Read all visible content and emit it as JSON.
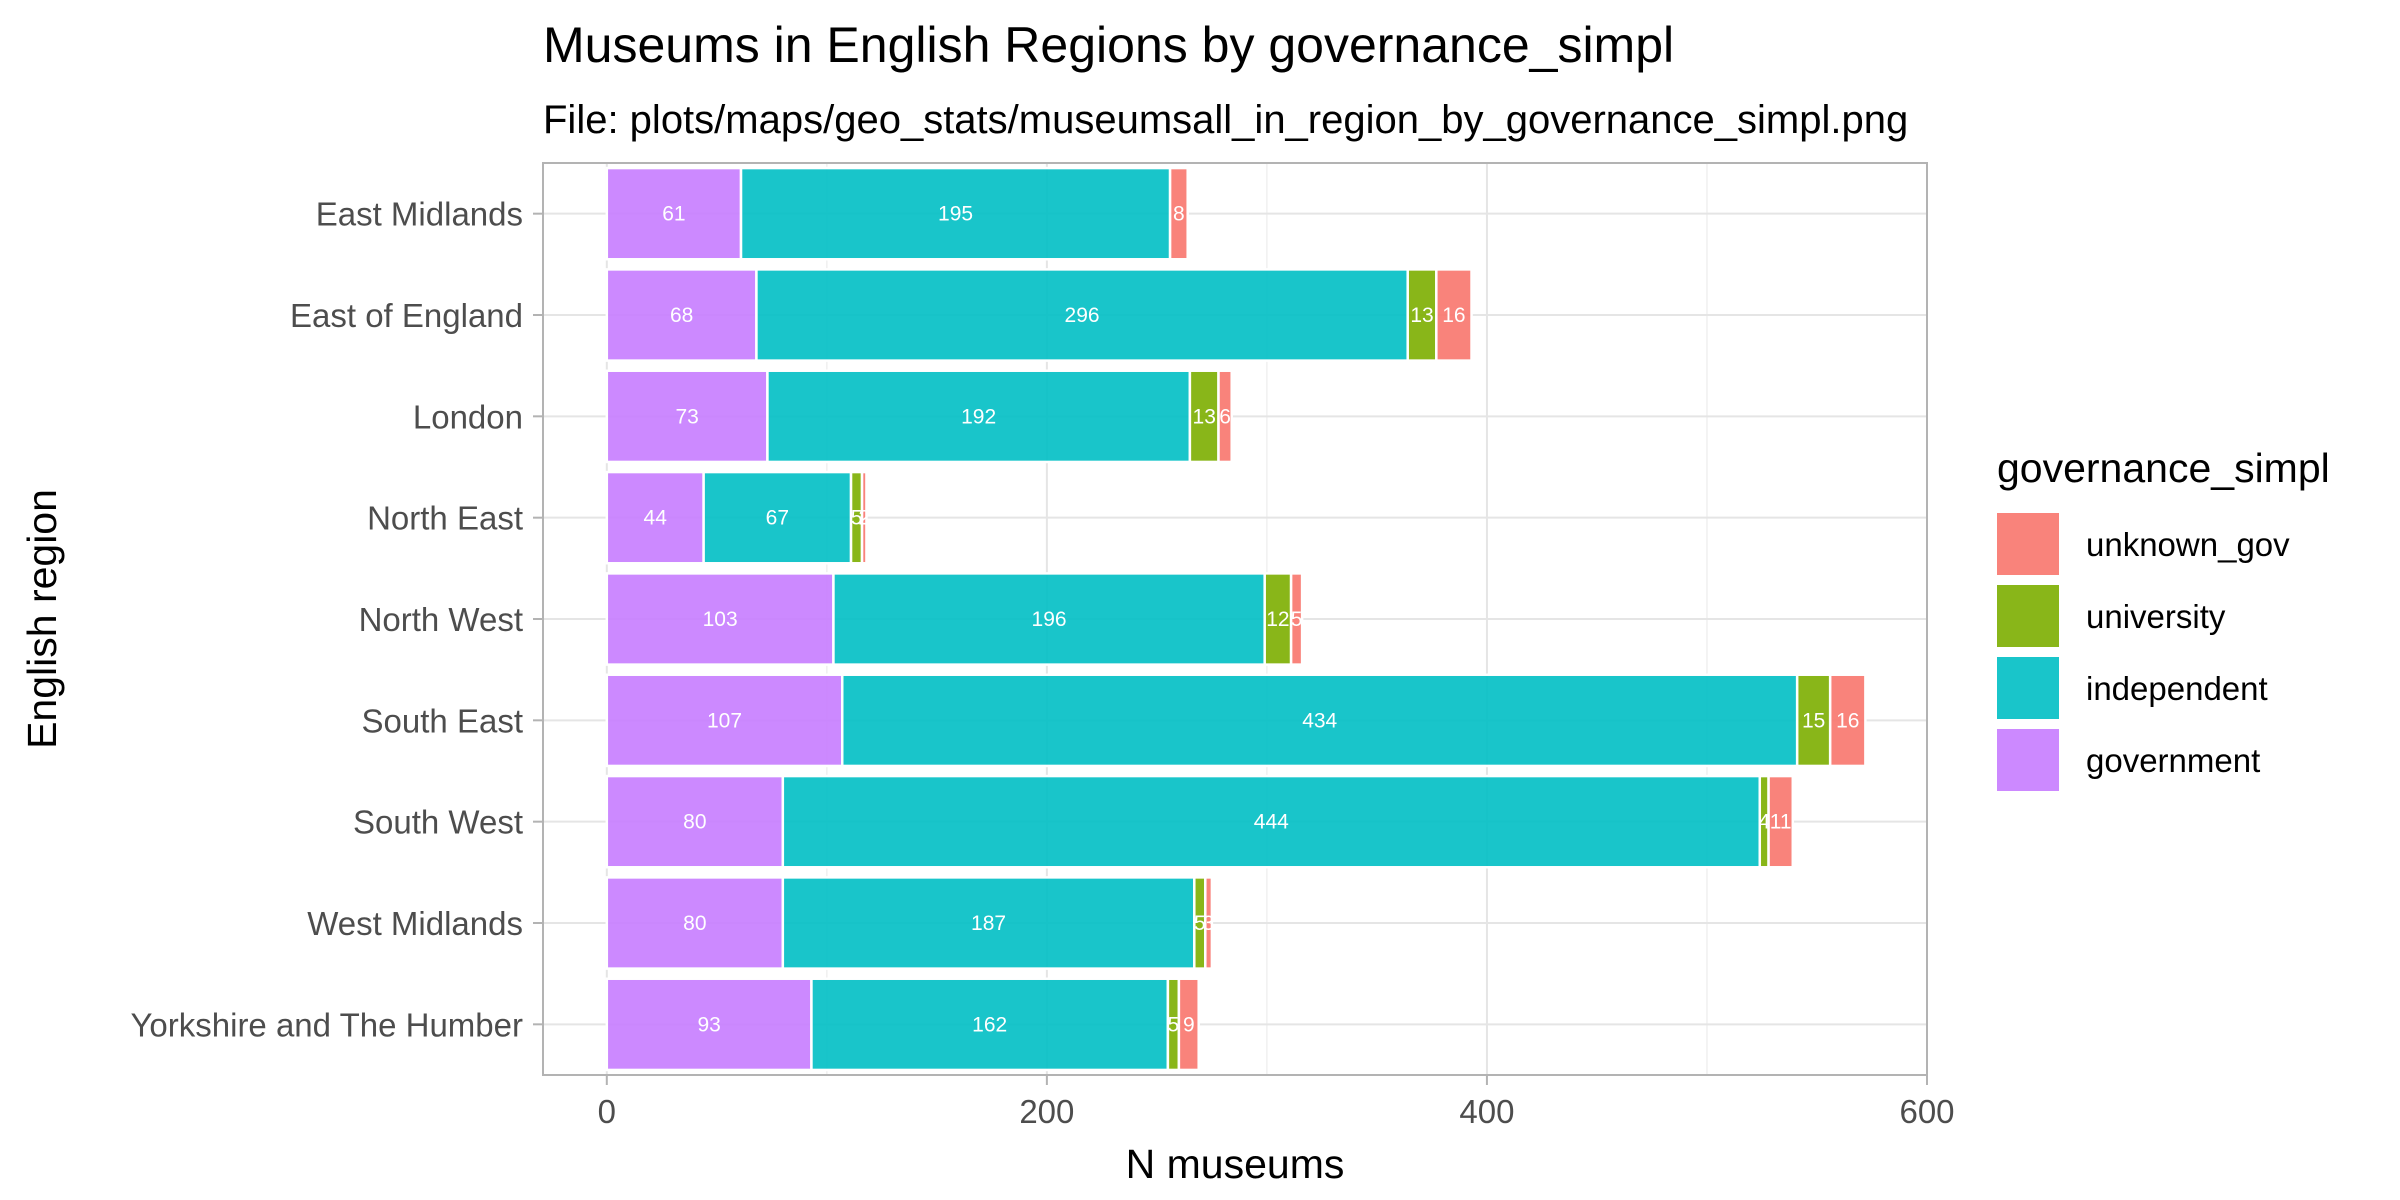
{
  "chart_data": {
    "type": "bar",
    "orientation": "horizontal",
    "stacked": true,
    "title": "Museums in English Regions by governance_simpl",
    "subtitle": "File: plots/maps/geo_stats/museumsall_in_region_by_governance_simpl.png",
    "xlabel": "N museums",
    "ylabel": "English region",
    "xlim": [
      -29,
      600
    ],
    "x_ticks": [
      0,
      200,
      400,
      600
    ],
    "grid": true,
    "legend": {
      "title": "governance_simpl",
      "placement": "right",
      "entries": [
        "unknown_gov",
        "university",
        "independent",
        "government"
      ]
    },
    "categories": [
      "East Midlands",
      "East of England",
      "London",
      "North East",
      "North West",
      "South East",
      "South West",
      "West Midlands",
      "Yorkshire and The Humber"
    ],
    "series": [
      {
        "name": "government",
        "color": "#C77CFF",
        "values": [
          61,
          68,
          73,
          44,
          103,
          107,
          80,
          80,
          93
        ]
      },
      {
        "name": "independent",
        "color": "#00BFC4",
        "values": [
          195,
          296,
          192,
          67,
          196,
          434,
          444,
          187,
          162
        ]
      },
      {
        "name": "university",
        "color": "#7CAE00",
        "values": [
          0,
          13,
          13,
          5,
          12,
          15,
          4,
          5,
          5
        ]
      },
      {
        "name": "unknown_gov",
        "color": "#F8766D",
        "values": [
          8,
          16,
          6,
          2,
          5,
          16,
          11,
          3,
          9
        ]
      }
    ]
  }
}
